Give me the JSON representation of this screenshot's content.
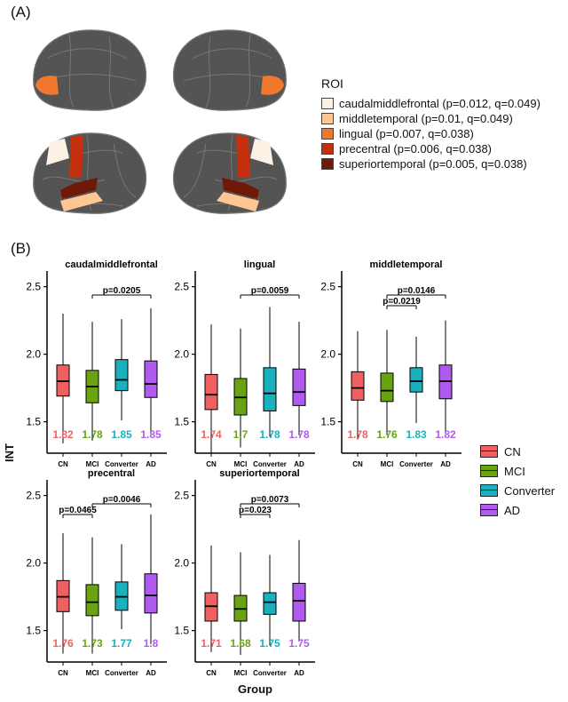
{
  "panels": {
    "a": "(A)",
    "b": "(B)"
  },
  "roi_legend": {
    "title": "ROI",
    "items": [
      {
        "label": "caudalmiddlefrontal (p=0.012, q=0.049)",
        "color": "#fdf1e6"
      },
      {
        "label": "middletemporal (p=0.01, q=0.049)",
        "color": "#fdc693"
      },
      {
        "label": "lingual (p=0.007, q=0.038)",
        "color": "#f0782d"
      },
      {
        "label": "precentral (p=0.006, q=0.038)",
        "color": "#c4300d"
      },
      {
        "label": "superiortemporal (p=0.005, q=0.038)",
        "color": "#6f1a08"
      }
    ]
  },
  "brain_colors": {
    "cortex": "#545454",
    "sulcus": "#777777"
  },
  "groups": [
    {
      "name": "CN",
      "color": "#f06060"
    },
    {
      "name": "MCI",
      "color": "#6aa312"
    },
    {
      "name": "Converter",
      "color": "#18b1bd"
    },
    {
      "name": "AD",
      "color": "#b15af0"
    }
  ],
  "axis_labels": {
    "y": "INT",
    "x": "Group"
  },
  "chart_data": [
    {
      "type": "box",
      "title": "caudalmiddlefrontal",
      "ylim": [
        1.3,
        2.55
      ],
      "yticks": [
        1.5,
        2.0,
        2.5
      ],
      "categories": [
        "CN",
        "MCI",
        "Converter",
        "AD"
      ],
      "boxes": [
        {
          "min": 1.34,
          "q1": 1.69,
          "median": 1.8,
          "q3": 1.92,
          "max": 2.3
        },
        {
          "min": 1.36,
          "q1": 1.64,
          "median": 1.76,
          "q3": 1.88,
          "max": 2.24
        },
        {
          "min": 1.51,
          "q1": 1.73,
          "median": 1.81,
          "q3": 1.96,
          "max": 2.26
        },
        {
          "min": 1.41,
          "q1": 1.68,
          "median": 1.78,
          "q3": 1.95,
          "max": 2.34
        }
      ],
      "means": [
        "1.82",
        "1.78",
        "1.85",
        "1.85"
      ],
      "comparisons": [
        {
          "from": 1,
          "to": 3,
          "label": "p=0.0205"
        }
      ]
    },
    {
      "type": "box",
      "title": "lingual",
      "ylim": [
        1.3,
        2.55
      ],
      "yticks": [
        1.5,
        2.0,
        2.5
      ],
      "categories": [
        "CN",
        "MCI",
        "Converter",
        "AD"
      ],
      "boxes": [
        {
          "min": 1.27,
          "q1": 1.59,
          "median": 1.7,
          "q3": 1.85,
          "max": 2.22
        },
        {
          "min": 1.31,
          "q1": 1.55,
          "median": 1.68,
          "q3": 1.82,
          "max": 2.19
        },
        {
          "min": 1.39,
          "q1": 1.58,
          "median": 1.71,
          "q3": 1.9,
          "max": 2.35
        },
        {
          "min": 1.4,
          "q1": 1.62,
          "median": 1.72,
          "q3": 1.89,
          "max": 2.24
        }
      ],
      "means": [
        "1.74",
        "1.7",
        "1.78",
        "1.78"
      ],
      "comparisons": [
        {
          "from": 1,
          "to": 3,
          "label": "p=0.0059"
        }
      ]
    },
    {
      "type": "box",
      "title": "middletemporal",
      "ylim": [
        1.3,
        2.55
      ],
      "yticks": [
        1.5,
        2.0,
        2.5
      ],
      "categories": [
        "CN",
        "MCI",
        "Converter",
        "AD"
      ],
      "boxes": [
        {
          "min": 1.37,
          "q1": 1.66,
          "median": 1.75,
          "q3": 1.87,
          "max": 2.17
        },
        {
          "min": 1.4,
          "q1": 1.65,
          "median": 1.73,
          "q3": 1.86,
          "max": 2.18
        },
        {
          "min": 1.49,
          "q1": 1.72,
          "median": 1.8,
          "q3": 1.9,
          "max": 2.13
        },
        {
          "min": 1.43,
          "q1": 1.67,
          "median": 1.8,
          "q3": 1.92,
          "max": 2.25
        }
      ],
      "means": [
        "1.78",
        "1.76",
        "1.83",
        "1.82"
      ],
      "comparisons": [
        {
          "from": 1,
          "to": 2,
          "label": "p=0.0219"
        },
        {
          "from": 1,
          "to": 3,
          "label": "p=0.0146"
        }
      ]
    },
    {
      "type": "box",
      "title": "precentral",
      "ylim": [
        1.3,
        2.55
      ],
      "yticks": [
        1.5,
        2.0,
        2.5
      ],
      "categories": [
        "CN",
        "MCI",
        "Converter",
        "AD"
      ],
      "boxes": [
        {
          "min": 1.33,
          "q1": 1.64,
          "median": 1.75,
          "q3": 1.87,
          "max": 2.22
        },
        {
          "min": 1.33,
          "q1": 1.61,
          "median": 1.71,
          "q3": 1.84,
          "max": 2.19
        },
        {
          "min": 1.51,
          "q1": 1.65,
          "median": 1.75,
          "q3": 1.86,
          "max": 2.14
        },
        {
          "min": 1.4,
          "q1": 1.63,
          "median": 1.76,
          "q3": 1.92,
          "max": 2.36
        }
      ],
      "means": [
        "1.76",
        "1.73",
        "1.77",
        "1.8"
      ],
      "comparisons": [
        {
          "from": 0,
          "to": 1,
          "label": "p=0.0465"
        },
        {
          "from": 1,
          "to": 3,
          "label": "p=0.0046"
        }
      ]
    },
    {
      "type": "box",
      "title": "superiortemporal",
      "ylim": [
        1.3,
        2.55
      ],
      "yticks": [
        1.5,
        2.0,
        2.5
      ],
      "categories": [
        "CN",
        "MCI",
        "Converter",
        "AD"
      ],
      "boxes": [
        {
          "min": 1.34,
          "q1": 1.57,
          "median": 1.68,
          "q3": 1.78,
          "max": 2.13
        },
        {
          "min": 1.32,
          "q1": 1.57,
          "median": 1.66,
          "q3": 1.76,
          "max": 2.08
        },
        {
          "min": 1.39,
          "q1": 1.62,
          "median": 1.71,
          "q3": 1.78,
          "max": 2.06
        },
        {
          "min": 1.42,
          "q1": 1.57,
          "median": 1.72,
          "q3": 1.85,
          "max": 2.17
        }
      ],
      "means": [
        "1.71",
        "1.68",
        "1.75",
        "1.75"
      ],
      "comparisons": [
        {
          "from": 1,
          "to": 2,
          "label": "p=0.023"
        },
        {
          "from": 1,
          "to": 3,
          "label": "p=0.0073"
        }
      ]
    }
  ]
}
